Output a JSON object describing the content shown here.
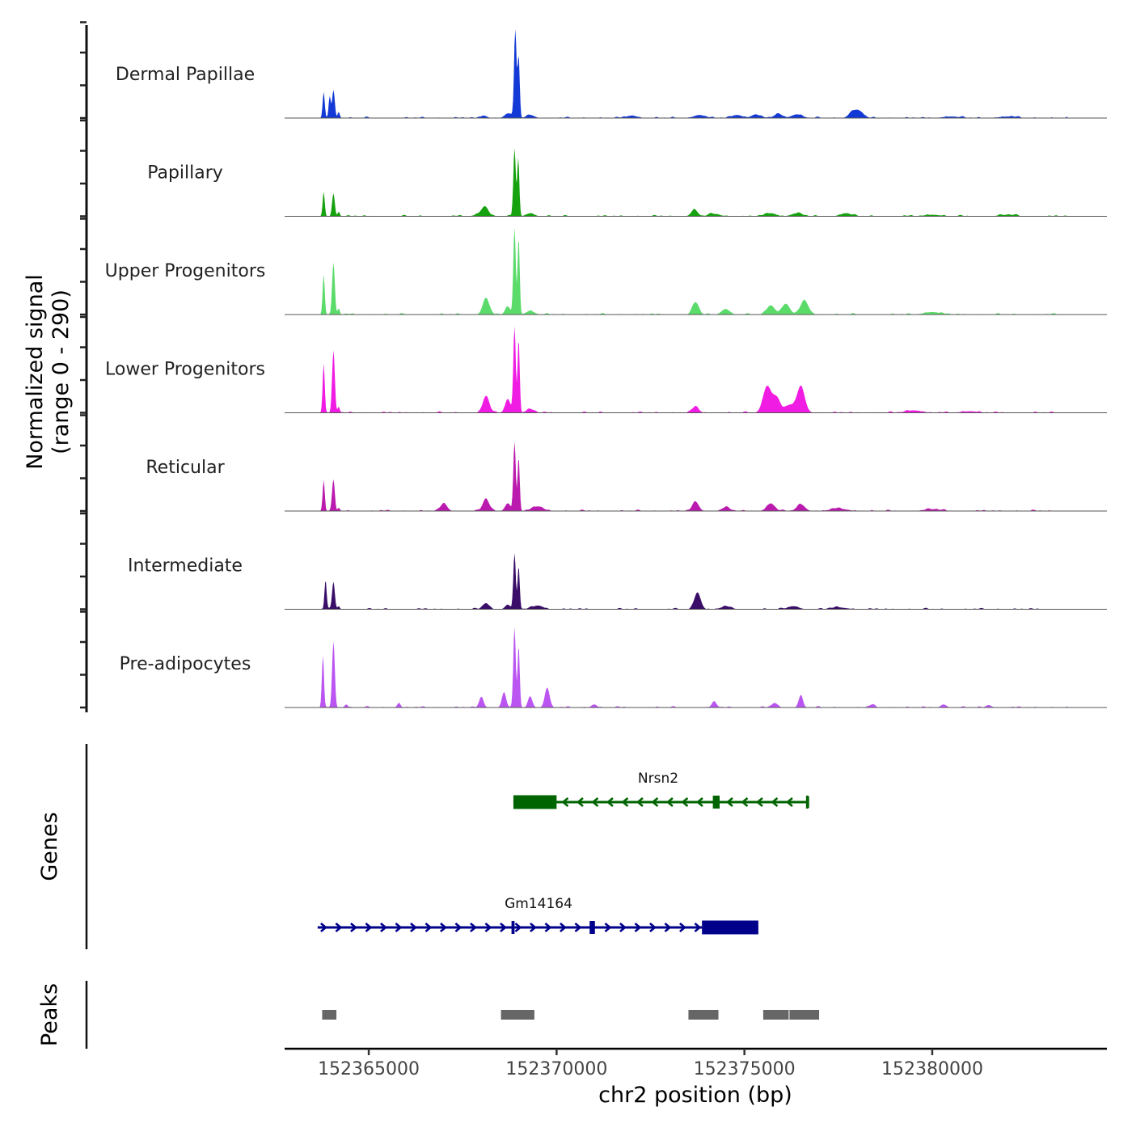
{
  "chart_data": {
    "type": "area",
    "title": "",
    "ylabel_line1": "Normalized signal",
    "ylabel_line2": "(range 0 - 290)",
    "xlabel": "chr2 position (bp)",
    "ylim": [
      0,
      290
    ],
    "xlim": [
      152362760,
      152384650
    ],
    "x_ticks": [
      152365000,
      152370000,
      152375000,
      152380000
    ],
    "x_tick_labels": [
      "152365000",
      "152370000",
      "152375000",
      "152380000"
    ],
    "tracks": [
      {
        "name": "Dermal Papillae",
        "color": "#1339D6",
        "peaks": [
          [
            152363800,
            85,
            40
          ],
          [
            152363960,
            70,
            40
          ],
          [
            152364060,
            90,
            50
          ],
          [
            152364200,
            20,
            40
          ],
          [
            152368060,
            8,
            120
          ],
          [
            152368700,
            15,
            120
          ],
          [
            152368900,
            290,
            45
          ],
          [
            152368990,
            200,
            40
          ],
          [
            152369300,
            10,
            150
          ],
          [
            152372000,
            8,
            200
          ],
          [
            152373800,
            10,
            200
          ],
          [
            152374800,
            10,
            200
          ],
          [
            152375300,
            12,
            150
          ],
          [
            152375900,
            14,
            150
          ],
          [
            152376400,
            12,
            200
          ],
          [
            152377900,
            25,
            150
          ],
          [
            152378100,
            18,
            120
          ],
          [
            152380500,
            5,
            300
          ],
          [
            152382000,
            5,
            300
          ]
        ]
      },
      {
        "name": "Papillary",
        "color": "#16A10F",
        "peaks": [
          [
            152363800,
            80,
            40
          ],
          [
            152364060,
            75,
            50
          ],
          [
            152364200,
            15,
            40
          ],
          [
            152368100,
            25,
            120
          ],
          [
            152368000,
            10,
            200
          ],
          [
            152368880,
            220,
            45
          ],
          [
            152368980,
            190,
            40
          ],
          [
            152369300,
            10,
            150
          ],
          [
            152373670,
            22,
            120
          ],
          [
            152374200,
            8,
            200
          ],
          [
            152375700,
            10,
            200
          ],
          [
            152376400,
            10,
            200
          ],
          [
            152377700,
            10,
            200
          ],
          [
            152380000,
            5,
            300
          ],
          [
            152382000,
            5,
            300
          ]
        ]
      },
      {
        "name": "Upper Progenitors",
        "color": "#5BDB6A",
        "peaks": [
          [
            152363800,
            130,
            40
          ],
          [
            152364060,
            170,
            50
          ],
          [
            152364200,
            20,
            40
          ],
          [
            152368120,
            55,
            120
          ],
          [
            152368700,
            25,
            100
          ],
          [
            152368880,
            280,
            45
          ],
          [
            152368990,
            250,
            40
          ],
          [
            152369300,
            12,
            150
          ],
          [
            152373700,
            40,
            120
          ],
          [
            152374500,
            18,
            150
          ],
          [
            152375700,
            30,
            150
          ],
          [
            152376100,
            35,
            150
          ],
          [
            152376600,
            45,
            150
          ],
          [
            152380000,
            8,
            300
          ]
        ]
      },
      {
        "name": "Lower Progenitors",
        "color": "#F01CE3",
        "peaks": [
          [
            152363800,
            160,
            40
          ],
          [
            152364060,
            200,
            50
          ],
          [
            152364200,
            20,
            40
          ],
          [
            152368120,
            55,
            120
          ],
          [
            152368700,
            45,
            100
          ],
          [
            152368880,
            280,
            45
          ],
          [
            152368990,
            240,
            40
          ],
          [
            152369300,
            12,
            150
          ],
          [
            152373700,
            20,
            120
          ],
          [
            152375600,
            85,
            150
          ],
          [
            152375850,
            50,
            150
          ],
          [
            152376500,
            85,
            150
          ],
          [
            152376200,
            25,
            150
          ],
          [
            152379500,
            8,
            300
          ],
          [
            152381000,
            5,
            300
          ]
        ]
      },
      {
        "name": "Reticular",
        "color": "#BA1AAE",
        "peaks": [
          [
            152363800,
            100,
            40
          ],
          [
            152364060,
            100,
            50
          ],
          [
            152364200,
            10,
            40
          ],
          [
            152367000,
            25,
            120
          ],
          [
            152368120,
            40,
            120
          ],
          [
            152368700,
            25,
            100
          ],
          [
            152368880,
            225,
            45
          ],
          [
            152368990,
            175,
            40
          ],
          [
            152369500,
            15,
            200
          ],
          [
            152373700,
            30,
            120
          ],
          [
            152374500,
            12,
            150
          ],
          [
            152375700,
            25,
            150
          ],
          [
            152376500,
            22,
            150
          ],
          [
            152377500,
            8,
            300
          ],
          [
            152380000,
            6,
            300
          ]
        ]
      },
      {
        "name": "Intermediate",
        "color": "#3A0D69",
        "peaks": [
          [
            152363850,
            95,
            40
          ],
          [
            152364060,
            90,
            50
          ],
          [
            152364200,
            10,
            40
          ],
          [
            152368120,
            20,
            120
          ],
          [
            152368700,
            15,
            100
          ],
          [
            152368880,
            180,
            45
          ],
          [
            152368990,
            140,
            40
          ],
          [
            152369500,
            12,
            200
          ],
          [
            152373750,
            55,
            120
          ],
          [
            152374500,
            8,
            200
          ],
          [
            152376300,
            10,
            200
          ],
          [
            152377500,
            6,
            300
          ]
        ]
      },
      {
        "name": "Pre-adipocytes",
        "color": "#BB55F2",
        "peaks": [
          [
            152363780,
            170,
            40
          ],
          [
            152364060,
            215,
            50
          ],
          [
            152364400,
            10,
            60
          ],
          [
            152365800,
            15,
            60
          ],
          [
            152368000,
            35,
            80
          ],
          [
            152368600,
            50,
            80
          ],
          [
            152368880,
            260,
            45
          ],
          [
            152368990,
            200,
            40
          ],
          [
            152369300,
            35,
            80
          ],
          [
            152369750,
            65,
            90
          ],
          [
            152371000,
            10,
            100
          ],
          [
            152374200,
            18,
            90
          ],
          [
            152375800,
            15,
            100
          ],
          [
            152376500,
            40,
            80
          ],
          [
            152378400,
            8,
            100
          ],
          [
            152380300,
            10,
            100
          ],
          [
            152381500,
            8,
            100
          ]
        ]
      }
    ],
    "genes": [
      {
        "name": "Nrsn2",
        "strand": "-",
        "color": "#006400",
        "start": 152368850,
        "end": 152376690,
        "exons": [
          [
            152368850,
            152370000
          ],
          [
            152374160,
            152374340
          ],
          [
            152376640,
            152376690
          ]
        ]
      },
      {
        "name": "Gm14164",
        "strand": "+",
        "color": "#00008B",
        "start": 152363640,
        "end": 152375370,
        "exons": [
          [
            152368800,
            152368880
          ],
          [
            152370880,
            152371020
          ],
          [
            152373870,
            152375370
          ]
        ]
      }
    ],
    "peaks_track": {
      "label": "Peaks",
      "color": "#666666",
      "regions": [
        [
          152363760,
          152364160
        ],
        [
          152368520,
          152369430
        ],
        [
          152373510,
          152374330
        ],
        [
          152375500,
          152376200
        ],
        [
          152376200,
          152377010
        ]
      ]
    },
    "genes_label": "Genes"
  }
}
